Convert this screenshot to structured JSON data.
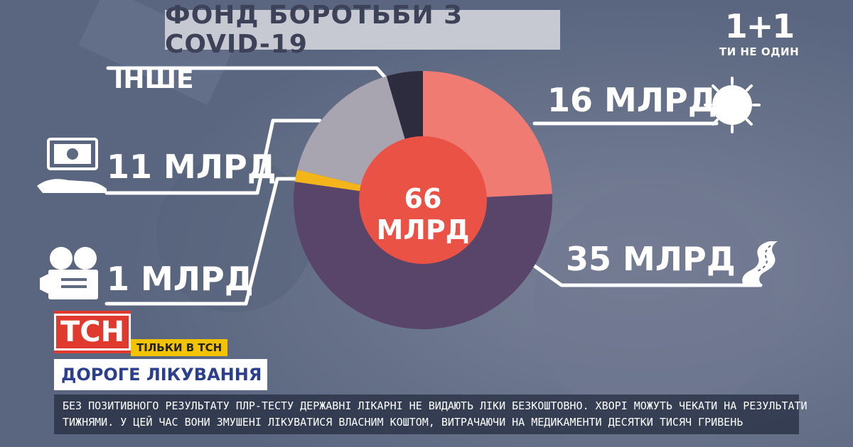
{
  "chart_data": {
    "type": "pie",
    "title": "ФОНД БОРОТЬБИ З COVID-19",
    "total_label": "66 МЛРД",
    "slices": [
      {
        "label": "16 МЛРД",
        "value": 16,
        "color": "#f07b72"
      },
      {
        "label": "35 МЛРД",
        "value": 35,
        "color": "#584569"
      },
      {
        "label": "1 МЛРД",
        "value": 1,
        "color": "#f4b51a"
      },
      {
        "label": "11 МЛРД",
        "value": 11,
        "color": "#a8a4b0"
      },
      {
        "label": "ІНШЕ",
        "value": 3,
        "color": "#2d2b3e"
      }
    ],
    "center_color": "#ea5245"
  },
  "brand": {
    "logo": "1+1",
    "slogan": "ТИ НЕ ОДИН"
  },
  "lower_third": {
    "channel": "ТСН",
    "exclusive": "ТІЛЬКИ В ТСН",
    "headline": "ДОРОГЕ ЛІКУВАННЯ",
    "ticker": [
      "БЕЗ ПОЗИТИВНОГО РЕЗУЛЬТАТУ ПЛР-ТЕСТУ ДЕРЖАВНІ ЛІКАРНІ НЕ ВИДАЮТЬ ЛІКИ БЕЗКОШТОВНО. ХВОРІ МОЖУТЬ ЧЕКАТИ НА РЕЗУЛЬТАТИ",
      "ТИЖНЯМИ. У ЦЕЙ ЧАС ВОНИ ЗМУШЕНІ ЛІКУВАТИСЯ ВЛАСНИМ КОШТОМ, ВИТРАЧАЮЧИ НА МЕДИКАМЕНТИ ДЕСЯТКИ ТИСЯЧ ГРИВЕНЬ"
    ]
  },
  "icons": {
    "money": "money-hand-icon",
    "camera": "camera-icon",
    "virus": "virus-icon",
    "road": "road-icon"
  }
}
